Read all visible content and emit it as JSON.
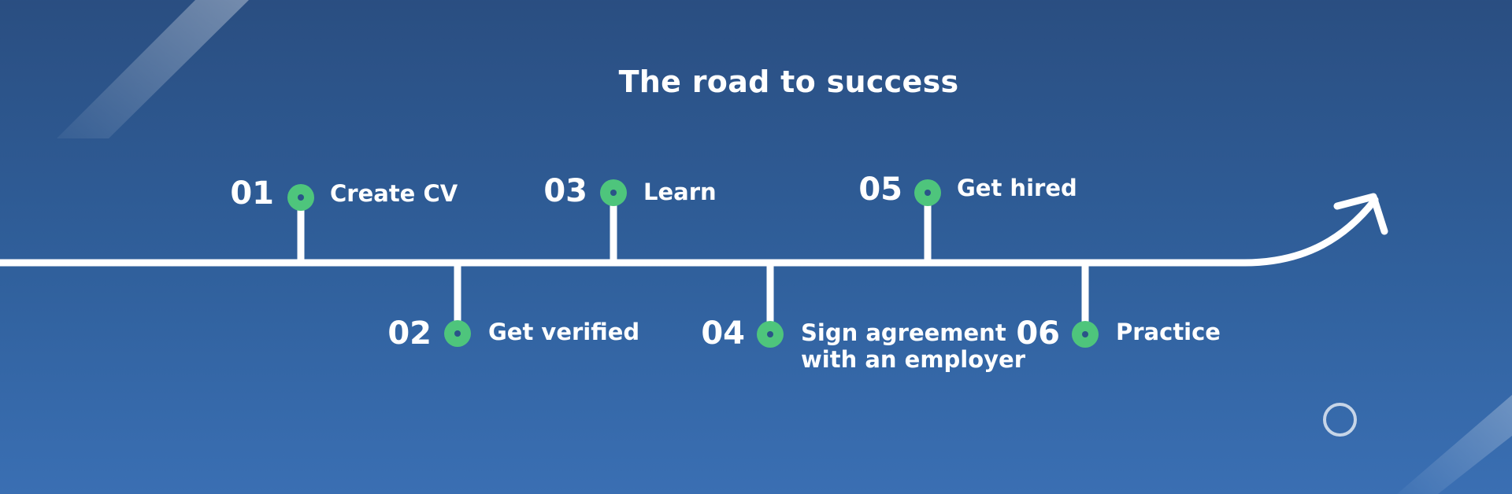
{
  "title": "The road to success",
  "colors": {
    "background_top": "#2a4e81",
    "background_bottom": "#3a6fb3",
    "road": "#ffffff",
    "dot": "#4ec57c"
  },
  "steps": [
    {
      "number": "01",
      "label": "Create CV",
      "position": "above"
    },
    {
      "number": "02",
      "label": "Get verified",
      "position": "below"
    },
    {
      "number": "03",
      "label": "Learn",
      "position": "above"
    },
    {
      "number": "04",
      "label": "Sign agreement",
      "label2": "with an employer",
      "position": "below"
    },
    {
      "number": "05",
      "label": "Get hired",
      "position": "above"
    },
    {
      "number": "06",
      "label": "Practice",
      "position": "below"
    }
  ],
  "icons": {
    "arrow": "arrow-icon",
    "ring": "circle-icon"
  }
}
